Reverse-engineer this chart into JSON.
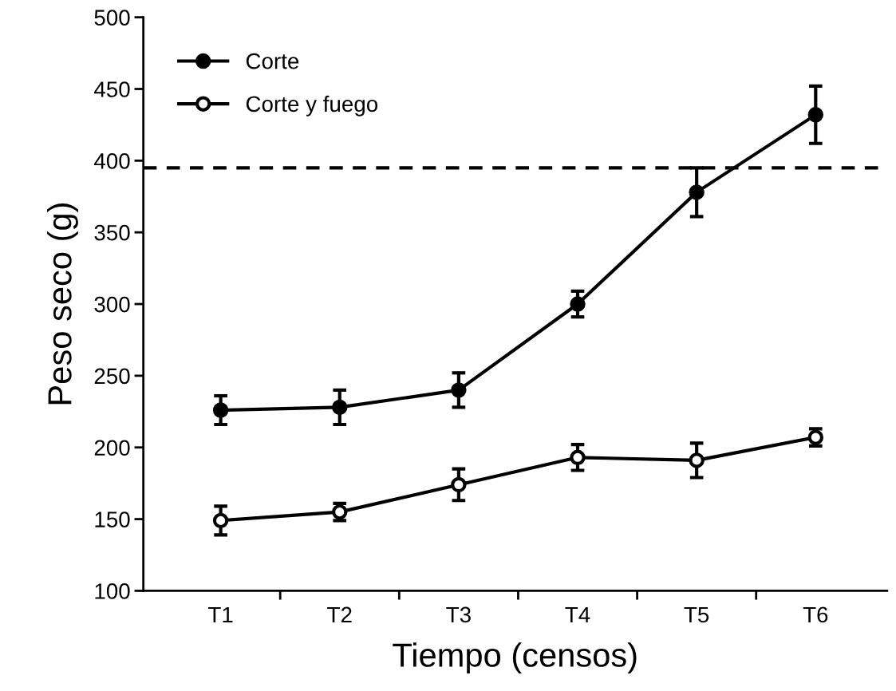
{
  "chart_data": {
    "type": "line",
    "xlabel": "Tiempo (censos)",
    "ylabel": "Peso seco (g)",
    "categories": [
      "T1",
      "T2",
      "T3",
      "T4",
      "T5",
      "T6"
    ],
    "series": [
      {
        "name": "Corte",
        "color": "#000000",
        "values": [
          226,
          228,
          240,
          300,
          378,
          432
        ],
        "errors": [
          10,
          12,
          12,
          9,
          17,
          20
        ]
      },
      {
        "name": "Corte y fuego",
        "color": "#000000",
        "values": [
          149,
          155,
          174,
          193,
          191,
          207
        ],
        "errors": [
          10,
          6,
          11,
          9,
          12,
          6
        ]
      }
    ],
    "ylim": [
      100,
      500
    ],
    "yticks": [
      100,
      150,
      200,
      250,
      300,
      350,
      400,
      450,
      500
    ],
    "ref_lines": [
      {
        "axis": "y",
        "value": 395,
        "line_style": "dashed",
        "color": "#000000"
      }
    ],
    "marker": "circle",
    "line_style": "solid",
    "legend": "top left",
    "grid": false
  }
}
